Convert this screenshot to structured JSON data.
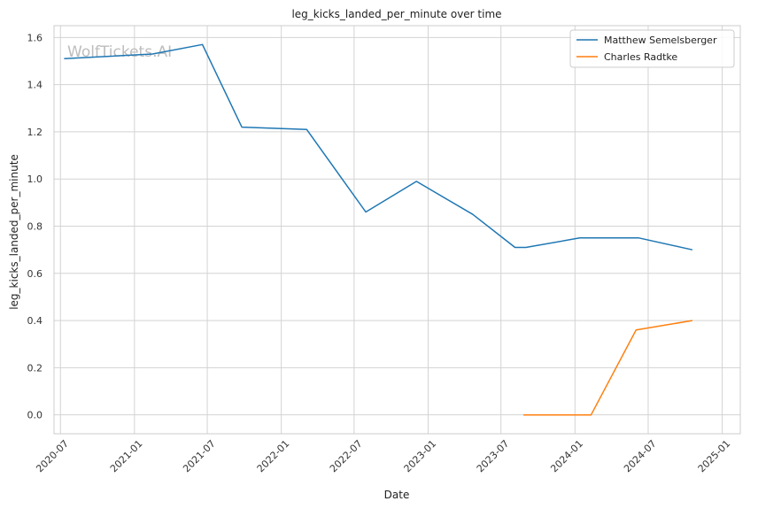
{
  "chart_data": {
    "type": "line",
    "title": "leg_kicks_landed_per_minute over time",
    "xlabel": "Date",
    "ylabel": "leg_kicks_landed_per_minute",
    "watermark": "WolfTickets.AI",
    "xlim": [
      "2020-06-15",
      "2025-02-15"
    ],
    "ylim": [
      -0.08,
      1.65
    ],
    "x_ticks": [
      "2020-07-01",
      "2021-01-01",
      "2021-07-01",
      "2022-01-01",
      "2022-07-01",
      "2023-01-01",
      "2023-07-01",
      "2024-01-01",
      "2024-07-01",
      "2025-01-01"
    ],
    "x_tick_labels": [
      "2020-07",
      "2021-01",
      "2021-07",
      "2022-01",
      "2022-07",
      "2023-01",
      "2023-07",
      "2024-01",
      "2024-07",
      "2025-01"
    ],
    "y_ticks": [
      0.0,
      0.2,
      0.4,
      0.6,
      0.8,
      1.0,
      1.2,
      1.4,
      1.6
    ],
    "y_tick_labels": [
      "0.0",
      "0.2",
      "0.4",
      "0.6",
      "0.8",
      "1.0",
      "1.2",
      "1.4",
      "1.6"
    ],
    "grid": true,
    "legend_position": "top-right",
    "series": [
      {
        "name": "Matthew Semelsberger",
        "color": "#1f77b4",
        "x": [
          "2020-07-10",
          "2021-02-15",
          "2021-06-19",
          "2021-09-25",
          "2022-03-05",
          "2022-07-30",
          "2022-12-03",
          "2023-04-22",
          "2023-08-05",
          "2023-09-01",
          "2024-01-13",
          "2024-06-08",
          "2024-10-19"
        ],
        "values": [
          1.51,
          1.53,
          1.57,
          1.22,
          1.21,
          0.86,
          0.99,
          0.85,
          0.71,
          0.71,
          0.75,
          0.75,
          0.7
        ]
      },
      {
        "name": "Charles Radtke",
        "color": "#ff7f0e",
        "x": [
          "2023-08-26",
          "2024-02-10",
          "2024-06-01",
          "2024-10-19"
        ],
        "values": [
          0.0,
          0.0,
          0.36,
          0.4
        ]
      }
    ]
  }
}
